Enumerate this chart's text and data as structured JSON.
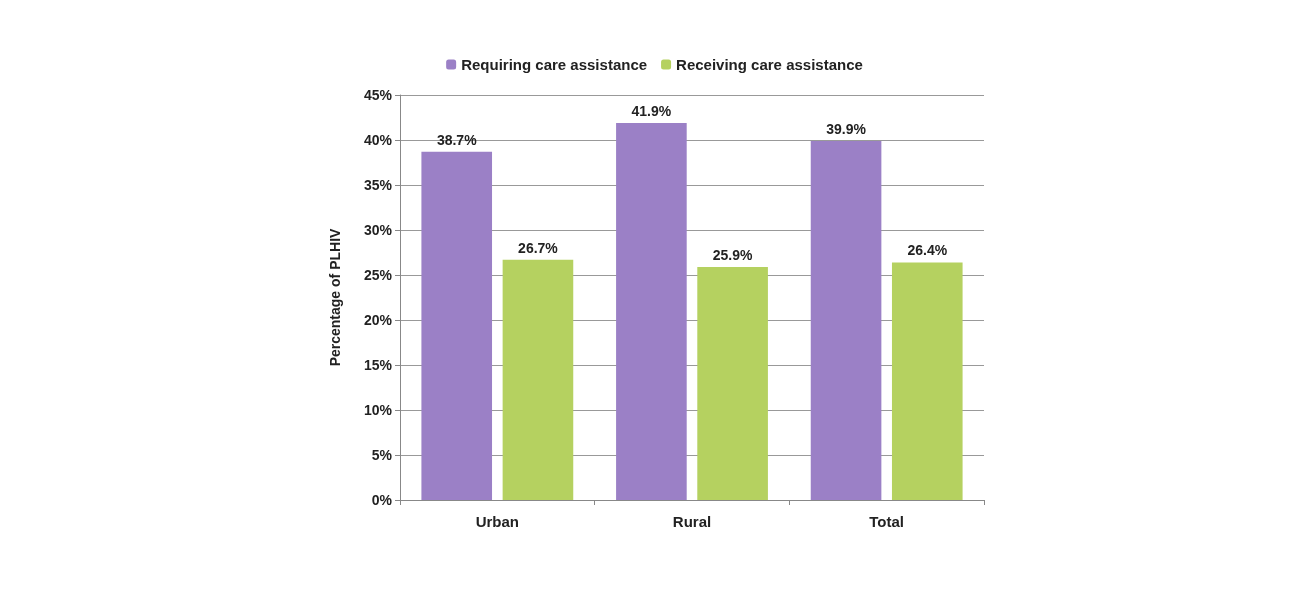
{
  "chart_data": {
    "type": "bar",
    "ylabel": "Percentage of PLHIV",
    "categories": [
      "Urban",
      "Rural",
      "Total"
    ],
    "series": [
      {
        "name": "Requiring care assistance",
        "color": "#9b80c6",
        "values": [
          38.7,
          41.9,
          39.9
        ],
        "value_labels": [
          "38.7%",
          "41.9%",
          "39.9%"
        ]
      },
      {
        "name": "Receiving care assistance",
        "color": "#b5d160",
        "values": [
          26.7,
          25.9,
          26.4
        ],
        "value_labels": [
          "26.7%",
          "25.9%",
          "26.4%"
        ]
      }
    ],
    "ylim": [
      0,
      45
    ],
    "yticks": [
      {
        "value": 0,
        "label": "0%"
      },
      {
        "value": 5,
        "label": "5%"
      },
      {
        "value": 10,
        "label": "10%"
      },
      {
        "value": 15,
        "label": "15%"
      },
      {
        "value": 20,
        "label": "20%"
      },
      {
        "value": 25,
        "label": "25%"
      },
      {
        "value": 30,
        "label": "30%"
      },
      {
        "value": 35,
        "label": "35%"
      },
      {
        "value": 40,
        "label": "40%"
      },
      {
        "value": 45,
        "label": "45%"
      }
    ],
    "grid": "y",
    "legend": "top"
  }
}
